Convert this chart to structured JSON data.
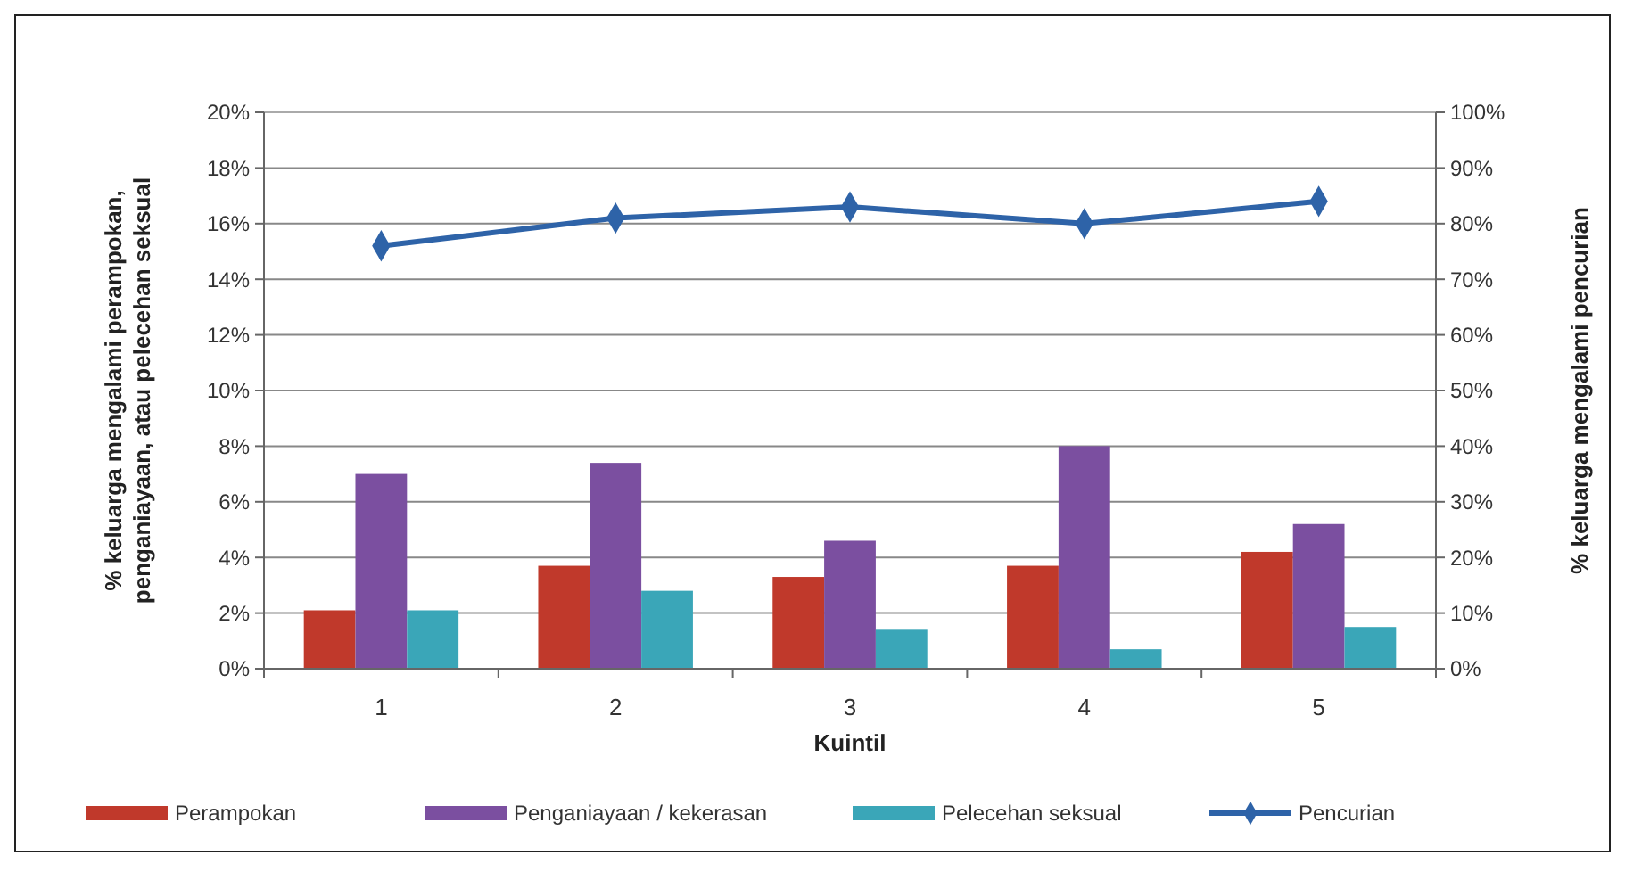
{
  "chart_data": {
    "type": "bar",
    "xlabel": "Kuintil",
    "ylabel": "% keluarga mengalami perampokan, penganiayaan, atau pelecehan seksual",
    "y2label": "% keluarga mengalami pencurian",
    "categories": [
      "1",
      "2",
      "3",
      "4",
      "5"
    ],
    "series": [
      {
        "name": "Perampokan",
        "color": "#c0392b",
        "values": [
          2.1,
          3.7,
          3.3,
          3.7,
          4.2
        ]
      },
      {
        "name": "Penganiayaan / kekerasan",
        "color": "#7b4fa0",
        "values": [
          7.0,
          7.4,
          4.6,
          8.0,
          5.2
        ]
      },
      {
        "name": "Pelecehan seksual",
        "color": "#3aa6b8",
        "values": [
          2.1,
          2.8,
          1.4,
          0.7,
          1.5
        ]
      },
      {
        "name": "Pencurian",
        "type": "line",
        "axis": "y2",
        "color": "#2e63a8",
        "values": [
          76,
          81,
          83,
          80,
          84
        ]
      }
    ],
    "ylim": [
      0,
      20
    ],
    "yticks": [
      {
        "value": 0,
        "label": "0%"
      },
      {
        "value": 2,
        "label": "2%"
      },
      {
        "value": 4,
        "label": "4%"
      },
      {
        "value": 6,
        "label": "6%"
      },
      {
        "value": 8,
        "label": "8%"
      },
      {
        "value": 10,
        "label": "10%"
      },
      {
        "value": 12,
        "label": "12%"
      },
      {
        "value": 14,
        "label": "14%"
      },
      {
        "value": 16,
        "label": "16%"
      },
      {
        "value": 18,
        "label": "18%"
      },
      {
        "value": 20,
        "label": "20%"
      }
    ],
    "y2lim": [
      0,
      100
    ],
    "y2ticks": [
      {
        "value": 0,
        "label": "0%"
      },
      {
        "value": 10,
        "label": "10%"
      },
      {
        "value": 20,
        "label": "20%"
      },
      {
        "value": 30,
        "label": "30%"
      },
      {
        "value": 40,
        "label": "40%"
      },
      {
        "value": 50,
        "label": "50%"
      },
      {
        "value": 60,
        "label": "60%"
      },
      {
        "value": 70,
        "label": "70%"
      },
      {
        "value": 80,
        "label": "80%"
      },
      {
        "value": 90,
        "label": "90%"
      },
      {
        "value": 100,
        "label": "100%"
      }
    ],
    "grid": "y",
    "legend": "bottom",
    "marker": "diamond"
  }
}
